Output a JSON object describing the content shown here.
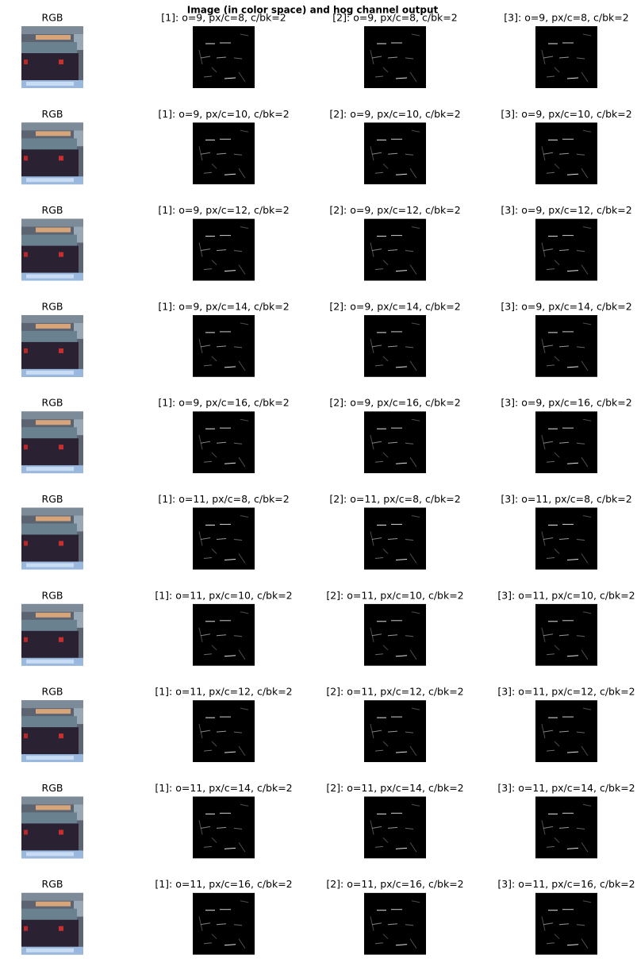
{
  "title": "Image (in color space) and hog channel output",
  "rows": [
    [
      "RGB",
      "[1]: o=9, px/c=8, c/bk=2",
      "[2]: o=9, px/c=8, c/bk=2",
      "[3]: o=9, px/c=8, c/bk=2"
    ],
    [
      "RGB",
      "[1]: o=9, px/c=10, c/bk=2",
      "[2]: o=9, px/c=10, c/bk=2",
      "[3]: o=9, px/c=10, c/bk=2"
    ],
    [
      "RGB",
      "[1]: o=9, px/c=12, c/bk=2",
      "[2]: o=9, px/c=12, c/bk=2",
      "[3]: o=9, px/c=12, c/bk=2"
    ],
    [
      "RGB",
      "[1]: o=9, px/c=14, c/bk=2",
      "[2]: o=9, px/c=14, c/bk=2",
      "[3]: o=9, px/c=14, c/bk=2"
    ],
    [
      "RGB",
      "[1]: o=9, px/c=16, c/bk=2",
      "[2]: o=9, px/c=16, c/bk=2",
      "[3]: o=9, px/c=16, c/bk=2"
    ],
    [
      "RGB",
      "[1]: o=11, px/c=8, c/bk=2",
      "[2]: o=11, px/c=8, c/bk=2",
      "[3]: o=11, px/c=8, c/bk=2"
    ],
    [
      "RGB",
      "[1]: o=11, px/c=10, c/bk=2",
      "[2]: o=11, px/c=10, c/bk=2",
      "[3]: o=11, px/c=10, c/bk=2"
    ],
    [
      "RGB",
      "[1]: o=11, px/c=12, c/bk=2",
      "[2]: o=11, px/c=12, c/bk=2",
      "[3]: o=11, px/c=12, c/bk=2"
    ],
    [
      "RGB",
      "[1]: o=11, px/c=14, c/bk=2",
      "[2]: o=11, px/c=14, c/bk=2",
      "[3]: o=11, px/c=14, c/bk=2"
    ],
    [
      "RGB",
      "[1]: o=11, px/c=16, c/bk=2",
      "[2]: o=11, px/c=16, c/bk=2",
      "[3]: o=11, px/c=16, c/bk=2"
    ]
  ]
}
